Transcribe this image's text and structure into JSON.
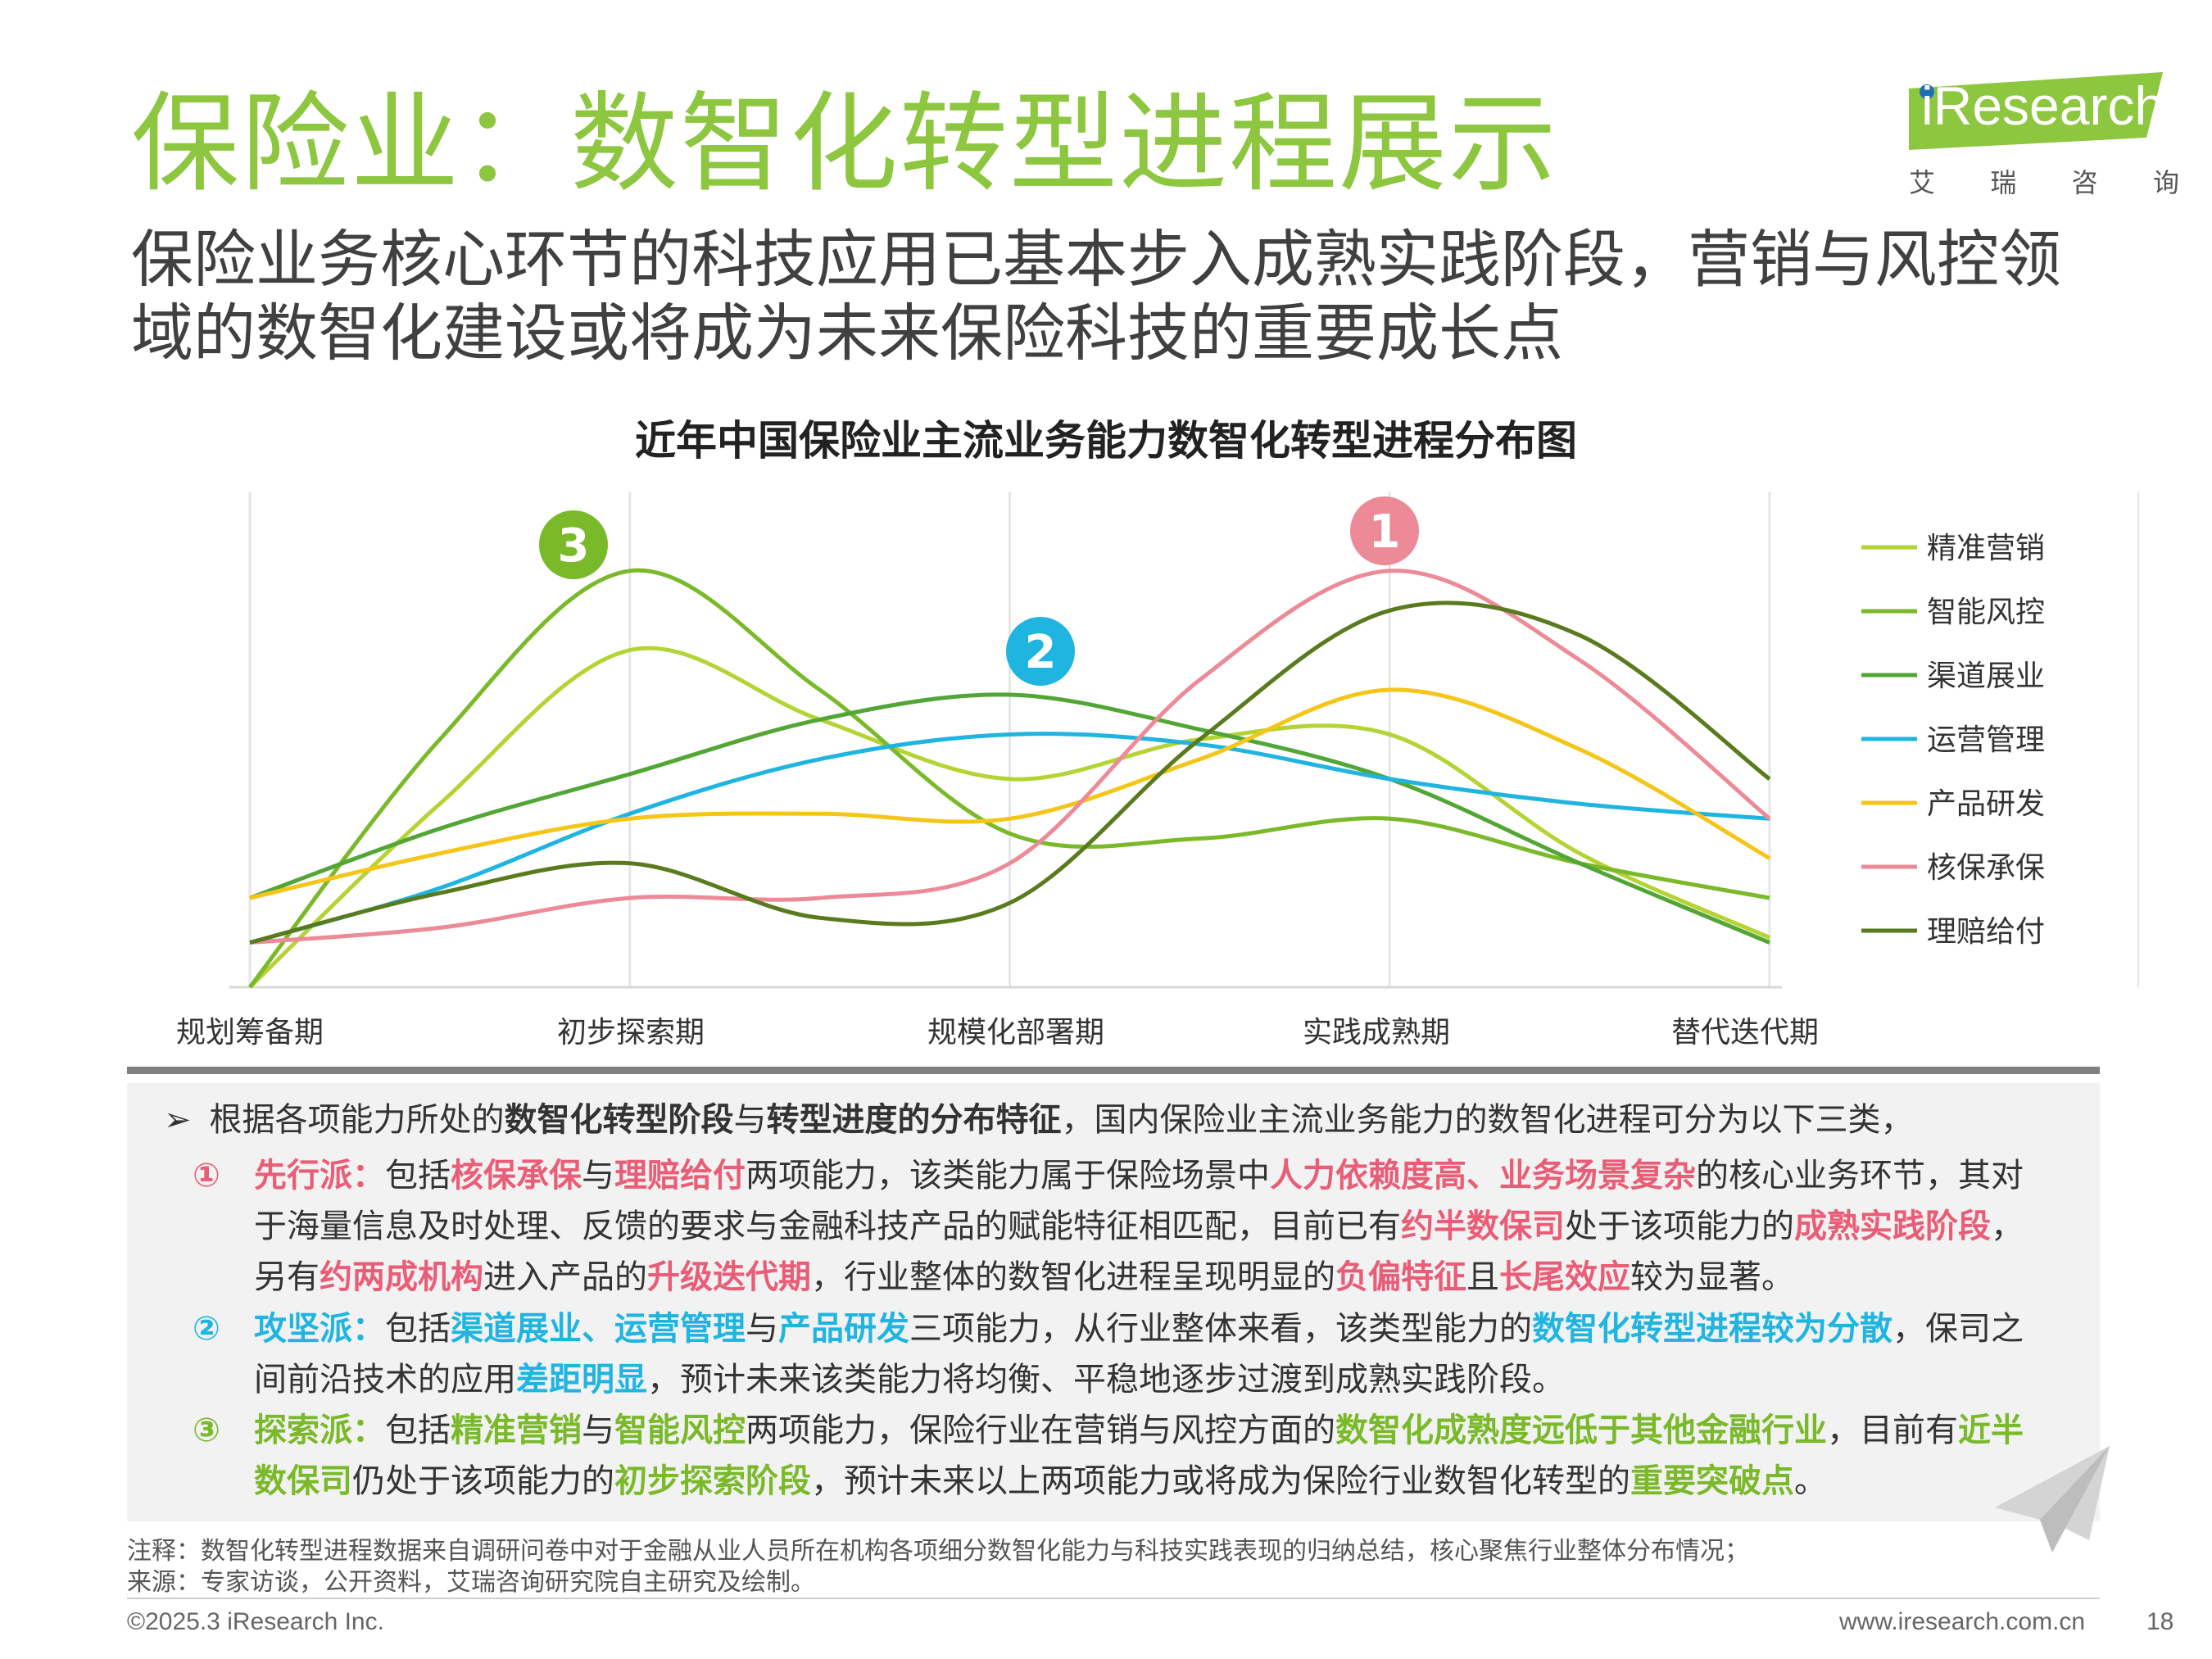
{
  "page": {
    "title": "保险业：数智化转型进程展示",
    "subtitle": "保险业务核心环节的科技应用已基本步入成熟实践阶段，营销与风控领域的数智化建设或将成为未来保险科技的重要成长点",
    "logo": {
      "word": "iResearch",
      "chars": [
        "艾",
        "瑞",
        "咨",
        "询"
      ]
    }
  },
  "chart_data": {
    "type": "line",
    "title": "近年中国保险业主流业务能力数智化转型进程分布图",
    "categories": [
      "规划筹备期",
      "初步探索期",
      "规模化部署期",
      "实践成熟期",
      "替代迭代期"
    ],
    "x": [
      0,
      0.5,
      1,
      1.5,
      2,
      2.5,
      3,
      3.5,
      4
    ],
    "ylim": [
      0,
      100
    ],
    "grid": "vertical",
    "legend_position": "right",
    "series": [
      {
        "name": "精准营销",
        "color": "#b5d334",
        "values": [
          0,
          37,
          68,
          54,
          42,
          50,
          51,
          27,
          10
        ]
      },
      {
        "name": "智能风控",
        "color": "#7ab929",
        "values": [
          0,
          50,
          84,
          60,
          31,
          30,
          34,
          25,
          18
        ]
      },
      {
        "name": "渠道展业",
        "color": "#52a636",
        "values": [
          18,
          32,
          43,
          54,
          59,
          52,
          42,
          25,
          9
        ]
      },
      {
        "name": "运营管理",
        "color": "#1fb5e0",
        "values": [
          9,
          20,
          35,
          46,
          51,
          49,
          42,
          37,
          34
        ]
      },
      {
        "name": "产品研发",
        "color": "#f5c518",
        "values": [
          18,
          27,
          34,
          35,
          34,
          46,
          60,
          48,
          26
        ]
      },
      {
        "name": "核保承保",
        "color": "#ec8a98",
        "values": [
          9,
          12,
          18,
          18,
          25,
          62,
          84,
          66,
          34
        ]
      },
      {
        "name": "理赔给付",
        "color": "#5a7a1e",
        "values": [
          9,
          19,
          25,
          14,
          17,
          50,
          76,
          71,
          42
        ]
      }
    ],
    "annotations": [
      {
        "label": "1",
        "color": "#ec8a98"
      },
      {
        "label": "2",
        "color": "#1fb5e0"
      },
      {
        "label": "3",
        "color": "#7ab929"
      }
    ]
  },
  "analysis": {
    "intro": [
      "根据各项能力所处的",
      "数智化转型阶段",
      "与",
      "转型进度的分布特征",
      "，国内保险业主流业务能力的数智化进程可分为以下三类，"
    ],
    "item1": {
      "num": "①",
      "parts": [
        "先行派：",
        "包括",
        "核保承保",
        "与",
        "理赔给付",
        "两项能力，该类能力属于保险场景中",
        "人力依赖度高、业务场景复杂",
        "的核心业务环节，其对于海量信息及时处理、反馈的要求与金融科技产品的赋能特征相匹配，目前已有",
        "约半数保司",
        "处于该项能力的",
        "成熟实践阶段",
        "，另有",
        "约两成机构",
        "进入产品的",
        "升级迭代期",
        "，行业整体的数智化进程呈现明显的",
        "负偏特征",
        "且",
        "长尾效应",
        "较为显著。"
      ]
    },
    "item2": {
      "num": "②",
      "parts": [
        "攻坚派：",
        "包括",
        "渠道展业、运营管理",
        "与",
        "产品研发",
        "三项能力，从行业整体来看，该类型能力的",
        "数智化转型进程较为分散",
        "，保司之间前沿技术的应用",
        "差距明显",
        "，预计未来该类能力将均衡、平稳地逐步过渡到成熟实践阶段。"
      ]
    },
    "item3": {
      "num": "③",
      "parts": [
        "探索派：",
        "包括",
        "精准营销",
        "与",
        "智能风控",
        "两项能力，保险行业在营销与风控方面的",
        "数智化成熟度远低于其他金融行业",
        "，目前有",
        "近半数保司",
        "仍处于该项能力的",
        "初步探索阶段",
        "，预计未来以上两项能力或将成为保险行业数智化转型的",
        "重要突破点",
        "。"
      ]
    }
  },
  "footnotes": {
    "note": "注释：数智化转型进程数据来自调研问卷中对于金融从业人员所在机构各项细分数智化能力与科技实践表现的归纳总结，核心聚焦行业整体分布情况；",
    "source": "来源：专家访谈，公开资料，艾瑞咨询研究院自主研究及绘制。"
  },
  "footer": {
    "copyright": "©2025.3 iResearch Inc.",
    "url": "www.iresearch.com.cn",
    "page": "18"
  }
}
